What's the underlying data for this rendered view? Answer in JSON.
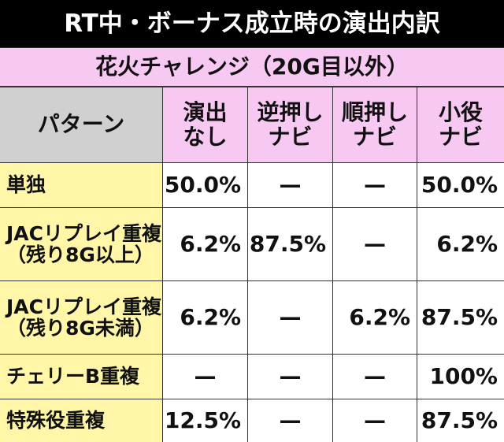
{
  "title": "RT中・ボーナス成立時の演出内訳",
  "subtitle": "花火チャレンジ（20G目以外）",
  "table": {
    "header": [
      [
        "パターン"
      ],
      [
        "演出",
        "なし"
      ],
      [
        "逆押し",
        "ナビ"
      ],
      [
        "順押し",
        "ナビ"
      ],
      [
        "小役",
        "ナビ"
      ]
    ],
    "rows": [
      {
        "label": [
          "単独"
        ],
        "cells": [
          "50.0%",
          "—",
          "—",
          "50.0%"
        ]
      },
      {
        "label": [
          "JACリプレイ重複",
          "（残り8G以上）"
        ],
        "cells": [
          "6.2%",
          "87.5%",
          "—",
          "6.2%"
        ]
      },
      {
        "label": [
          "JACリプレイ重複",
          "（残り8G未満）"
        ],
        "cells": [
          "6.2%",
          "—",
          "6.2%",
          "87.5%"
        ]
      },
      {
        "label": [
          "チェリーB重複"
        ],
        "cells": [
          "—",
          "—",
          "—",
          "100%"
        ]
      },
      {
        "label": [
          "特殊役重複"
        ],
        "cells": [
          "12.5%",
          "—",
          "—",
          "87.5%"
        ]
      }
    ]
  }
}
